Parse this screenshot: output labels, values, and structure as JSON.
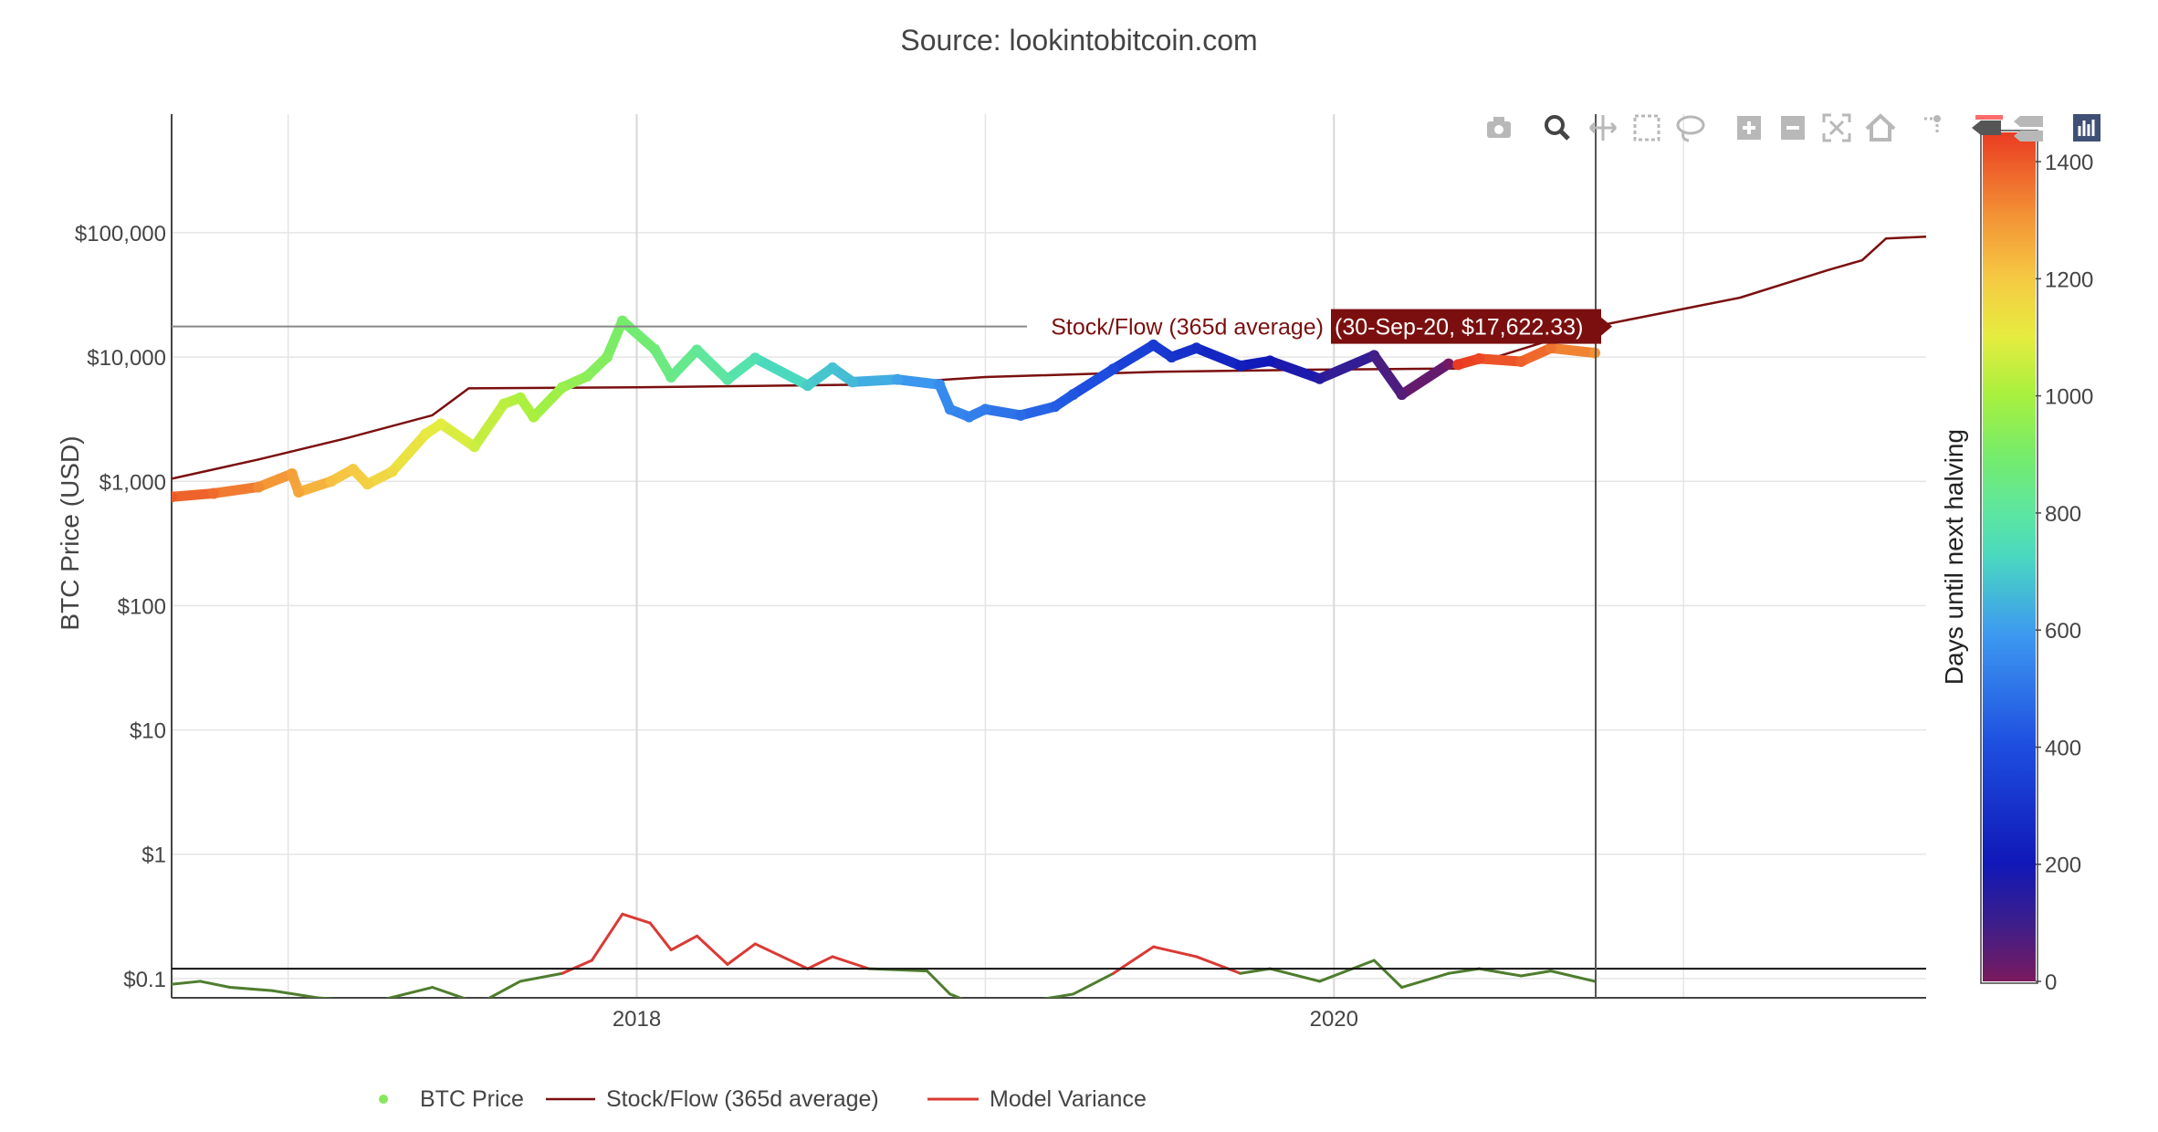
{
  "source_title": "Source: lookintobitcoin.com",
  "modebar": {
    "icons": [
      "camera-icon",
      "zoom-icon",
      "pan-icon",
      "box-select-icon",
      "lasso-select-icon",
      "zoom-in-icon",
      "zoom-out-icon",
      "autoscale-icon",
      "reset-axes-icon",
      "spike-lines-icon",
      "hover-closest-icon",
      "hover-compare-icon",
      "plotly-logo-icon"
    ]
  },
  "tooltip": {
    "series": "Stock/Flow (365d average)",
    "value": "(30-Sep-20, $17,622.33)"
  },
  "colors": {
    "stock_flow": "#7b0f0f",
    "variance_high": "#d93a35",
    "variance_low": "#4f7d2e",
    "grid": "#e5e5e5",
    "axis": "#444444"
  },
  "chart_data": {
    "type": "line",
    "title": "Source: lookintobitcoin.com",
    "xlabel": "",
    "ylabel": "BTC Price (USD)",
    "y_scale": "log",
    "x_range": [
      "2016-09-01",
      "2021-09-12"
    ],
    "y_range": [
      0.07,
      900000
    ],
    "x_ticks": [
      {
        "date": "2018-01-01",
        "label": "2018"
      },
      {
        "date": "2020-01-01",
        "label": "2020"
      }
    ],
    "y_ticks": [
      {
        "value": 0.1,
        "label": "$0.1"
      },
      {
        "value": 1,
        "label": "$1"
      },
      {
        "value": 10,
        "label": "$10"
      },
      {
        "value": 100,
        "label": "$100"
      },
      {
        "value": 1000,
        "label": "$1,000"
      },
      {
        "value": 10000,
        "label": "$10,000"
      },
      {
        "value": 100000,
        "label": "$100,000"
      }
    ],
    "grid": true,
    "colorbar": {
      "title": "Days until next halving",
      "min": 0,
      "max": 1450,
      "ticks": [
        0,
        200,
        400,
        600,
        800,
        1000,
        1200,
        1400
      ]
    },
    "legend": {
      "placement": "bottom",
      "entries": [
        "BTC Price",
        "Stock/Flow (365d average)",
        "Model Variance"
      ]
    },
    "halving_marker_date": "2020-10-01",
    "variance_reference_level": 0.12,
    "series": [
      {
        "name": "BTC Price",
        "marker": "points colored by days until next halving",
        "points": [
          [
            "2016-09-01",
            750,
            1400
          ],
          [
            "2016-10-15",
            800,
            1370
          ],
          [
            "2016-12-01",
            900,
            1320
          ],
          [
            "2017-01-05",
            1150,
            1280
          ],
          [
            "2017-01-12",
            820,
            1270
          ],
          [
            "2017-02-15",
            1000,
            1220
          ],
          [
            "2017-03-10",
            1250,
            1200
          ],
          [
            "2017-03-25",
            950,
            1180
          ],
          [
            "2017-04-20",
            1200,
            1150
          ],
          [
            "2017-05-25",
            2400,
            1110
          ],
          [
            "2017-06-10",
            2900,
            1100
          ],
          [
            "2017-07-15",
            1900,
            1060
          ],
          [
            "2017-08-15",
            4200,
            1030
          ],
          [
            "2017-09-01",
            4700,
            1010
          ],
          [
            "2017-09-15",
            3300,
            1000
          ],
          [
            "2017-10-15",
            5700,
            970
          ],
          [
            "2017-11-10",
            7000,
            940
          ],
          [
            "2017-12-01",
            10000,
            920
          ],
          [
            "2017-12-17",
            19500,
            900
          ],
          [
            "2018-01-20",
            11500,
            870
          ],
          [
            "2018-02-06",
            6900,
            850
          ],
          [
            "2018-03-05",
            11400,
            820
          ],
          [
            "2018-04-06",
            6600,
            790
          ],
          [
            "2018-05-05",
            9800,
            760
          ],
          [
            "2018-06-29",
            5900,
            700
          ],
          [
            "2018-07-25",
            8200,
            680
          ],
          [
            "2018-08-15",
            6300,
            660
          ],
          [
            "2018-10-01",
            6600,
            610
          ],
          [
            "2018-11-14",
            6000,
            560
          ],
          [
            "2018-11-25",
            3800,
            550
          ],
          [
            "2018-12-15",
            3300,
            530
          ],
          [
            "2019-01-01",
            3800,
            520
          ],
          [
            "2019-02-07",
            3400,
            480
          ],
          [
            "2019-03-15",
            4000,
            440
          ],
          [
            "2019-04-03",
            5000,
            420
          ],
          [
            "2019-05-15",
            8000,
            380
          ],
          [
            "2019-06-26",
            12500,
            330
          ],
          [
            "2019-07-15",
            10000,
            310
          ],
          [
            "2019-08-10",
            11800,
            280
          ],
          [
            "2019-09-25",
            8500,
            230
          ],
          [
            "2019-10-26",
            9300,
            200
          ],
          [
            "2019-12-17",
            6700,
            150
          ],
          [
            "2020-02-12",
            10300,
            90
          ],
          [
            "2020-03-12",
            5000,
            60
          ],
          [
            "2020-04-30",
            8800,
            10
          ],
          [
            "2020-05-10",
            8700,
            1450
          ],
          [
            "2020-06-01",
            9700,
            1430
          ],
          [
            "2020-07-15",
            9200,
            1390
          ],
          [
            "2020-08-15",
            11800,
            1360
          ],
          [
            "2020-09-30",
            10800,
            1310
          ]
        ]
      },
      {
        "name": "Stock/Flow (365d average)",
        "points": [
          [
            "2016-09-01",
            1050
          ],
          [
            "2016-12-01",
            1500
          ],
          [
            "2017-03-01",
            2200
          ],
          [
            "2017-06-01",
            3400
          ],
          [
            "2017-07-09",
            5600
          ],
          [
            "2018-01-01",
            5700
          ],
          [
            "2018-09-01",
            6000
          ],
          [
            "2019-01-01",
            6900
          ],
          [
            "2019-07-01",
            7600
          ],
          [
            "2019-12-01",
            7900
          ],
          [
            "2020-05-11",
            8100
          ],
          [
            "2020-09-30",
            17622.33
          ],
          [
            "2021-03-01",
            30000
          ],
          [
            "2021-06-01",
            50000
          ],
          [
            "2021-07-07",
            60000
          ],
          [
            "2021-08-01",
            90000
          ],
          [
            "2021-09-12",
            93000
          ]
        ]
      },
      {
        "name": "Model Variance",
        "points": [
          [
            "2016-09-01",
            0.09
          ],
          [
            "2016-10-01",
            0.095
          ],
          [
            "2016-11-01",
            0.085
          ],
          [
            "2016-12-15",
            0.08
          ],
          [
            "2017-02-01",
            0.07
          ],
          [
            "2017-04-01",
            0.065
          ],
          [
            "2017-06-01",
            0.085
          ],
          [
            "2017-07-20",
            0.063
          ],
          [
            "2017-09-01",
            0.095
          ],
          [
            "2017-10-15",
            0.11
          ],
          [
            "2017-11-15",
            0.14
          ],
          [
            "2017-12-17",
            0.33
          ],
          [
            "2018-01-15",
            0.28
          ],
          [
            "2018-02-06",
            0.17
          ],
          [
            "2018-03-05",
            0.22
          ],
          [
            "2018-04-06",
            0.13
          ],
          [
            "2018-05-05",
            0.19
          ],
          [
            "2018-06-29",
            0.12
          ],
          [
            "2018-07-25",
            0.15
          ],
          [
            "2018-09-01",
            0.12
          ],
          [
            "2018-11-01",
            0.115
          ],
          [
            "2018-11-25",
            0.075
          ],
          [
            "2018-12-15",
            0.065
          ],
          [
            "2019-02-07",
            0.064
          ],
          [
            "2019-04-03",
            0.075
          ],
          [
            "2019-05-15",
            0.11
          ],
          [
            "2019-06-26",
            0.18
          ],
          [
            "2019-08-10",
            0.15
          ],
          [
            "2019-09-25",
            0.11
          ],
          [
            "2019-10-26",
            0.12
          ],
          [
            "2019-12-17",
            0.095
          ],
          [
            "2020-02-12",
            0.14
          ],
          [
            "2020-03-12",
            0.085
          ],
          [
            "2020-04-30",
            0.11
          ],
          [
            "2020-06-01",
            0.12
          ],
          [
            "2020-07-15",
            0.105
          ],
          [
            "2020-08-15",
            0.115
          ],
          [
            "2020-09-30",
            0.095
          ]
        ]
      }
    ]
  }
}
